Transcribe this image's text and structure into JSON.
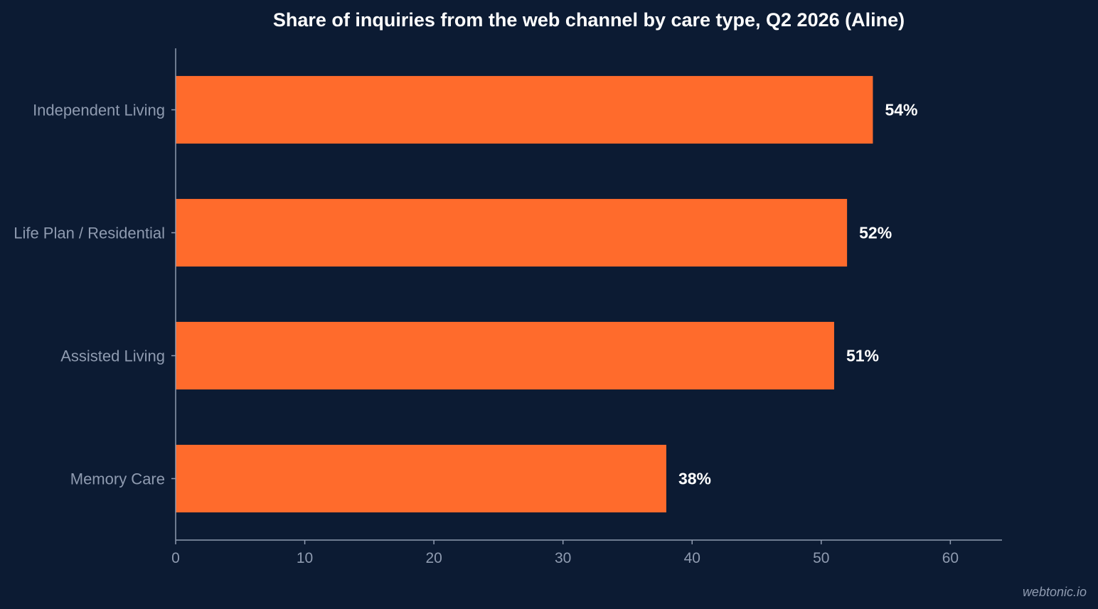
{
  "chart_data": {
    "type": "bar",
    "orientation": "horizontal",
    "title": "Share of inquiries from the web channel by care type, Q2 2026 (Aline)",
    "categories": [
      "Independent Living",
      "Life Plan / Residential",
      "Assisted Living",
      "Memory Care"
    ],
    "values": [
      54,
      52,
      51,
      38
    ],
    "value_labels": [
      "54%",
      "52%",
      "51%",
      "38%"
    ],
    "xlim": [
      0,
      64
    ],
    "xticks": [
      0,
      10,
      20,
      30,
      40,
      50,
      60
    ],
    "xtick_labels": [
      "0",
      "10",
      "20",
      "30",
      "40",
      "50",
      "60"
    ],
    "xlabel": "",
    "ylabel": "",
    "grid": false,
    "bar_color": "#ff6b2c"
  },
  "watermark": "webtonic.io",
  "colors": {
    "background": "#0c1b33",
    "axis": "#8f9bb0",
    "bar": "#ff6b2c",
    "title": "#ffffff"
  }
}
